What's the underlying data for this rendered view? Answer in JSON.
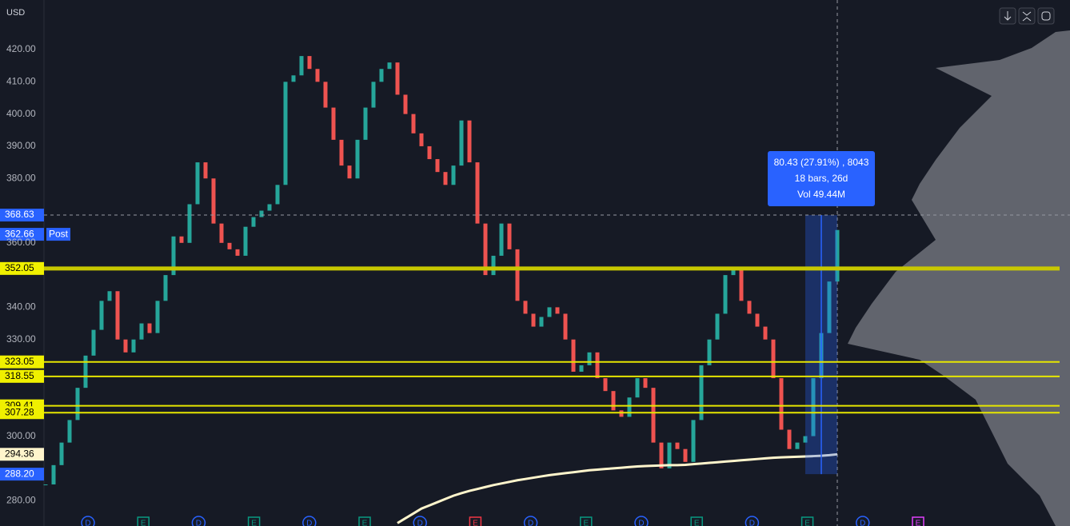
{
  "chart_data": {
    "type": "candlestick",
    "currency": "USD",
    "session_label": "Post",
    "ylim": [
      272.1,
      435.4
    ],
    "yticks": [
      {
        "value": 420,
        "label": "420.00"
      },
      {
        "value": 410,
        "label": "410.00"
      },
      {
        "value": 400,
        "label": "400.00"
      },
      {
        "value": 390,
        "label": "390.00"
      },
      {
        "value": 380,
        "label": "380.00"
      },
      {
        "value": 360,
        "label": "360.00"
      },
      {
        "value": 340,
        "label": "340.00"
      },
      {
        "value": 330,
        "label": "330.00"
      },
      {
        "value": 300,
        "label": "300.00"
      },
      {
        "value": 280,
        "label": "280.00"
      }
    ],
    "up_color": "#26a69a",
    "down_color": "#ef5350",
    "ma_color": "#fff5cc",
    "candles": {
      "close": [
        285,
        291,
        298,
        305,
        315,
        325,
        333,
        342,
        345,
        330,
        326,
        330,
        335,
        332,
        342,
        350,
        362,
        360,
        372,
        385,
        380,
        366,
        360,
        358,
        356,
        365,
        368,
        370,
        372,
        378,
        410,
        412,
        418,
        414,
        410,
        402,
        392,
        384,
        380,
        392,
        402,
        410,
        414,
        416,
        406,
        400,
        394,
        390,
        386,
        382,
        378,
        384,
        398,
        385,
        366,
        350,
        356,
        366,
        358,
        342,
        338,
        334,
        337,
        340,
        338,
        330,
        320,
        322,
        326,
        318,
        314,
        308,
        306,
        312,
        318,
        315,
        298,
        290,
        298,
        296,
        292,
        305,
        322,
        330,
        338,
        350,
        352,
        342,
        338,
        334,
        330,
        318,
        302,
        296,
        298,
        300,
        318,
        332,
        348,
        364
      ]
    },
    "ma": [
      null,
      null,
      null,
      null,
      null,
      null,
      null,
      null,
      null,
      null,
      null,
      null,
      null,
      null,
      null,
      null,
      null,
      null,
      null,
      null,
      null,
      null,
      null,
      null,
      null,
      null,
      null,
      null,
      null,
      null,
      null,
      null,
      null,
      null,
      null,
      null,
      null,
      null,
      null,
      null,
      null,
      null,
      null,
      null,
      273,
      274.5,
      276,
      277.5,
      278.5,
      279.5,
      280.5,
      281.5,
      282.3,
      283,
      283.6,
      284.2,
      284.8,
      285.3,
      285.8,
      286.3,
      286.7,
      287.1,
      287.5,
      287.9,
      288.2,
      288.5,
      288.8,
      289.1,
      289.4,
      289.6,
      289.8,
      290,
      290.2,
      290.4,
      290.6,
      290.7,
      290.8,
      290.9,
      291,
      291,
      291.1,
      291.3,
      291.5,
      291.7,
      291.9,
      292.1,
      292.3,
      292.5,
      292.7,
      292.9,
      293.1,
      293.3,
      293.4,
      293.5,
      293.6,
      293.7,
      293.8,
      293.9,
      294.1,
      294.36
    ],
    "price_labels": [
      {
        "value": 368.63,
        "color": "#2962ff",
        "text_color": "#ffffff",
        "line": "dashed"
      },
      {
        "value": 362.66,
        "color": "#2962ff",
        "text_color": "#ffffff"
      },
      {
        "value": 352.05,
        "color": "#f0f000",
        "text_color": "#000000",
        "line": "thick"
      },
      {
        "value": 323.05,
        "color": "#f0f000",
        "text_color": "#000000",
        "line": "thin"
      },
      {
        "value": 318.55,
        "color": "#f0f000",
        "text_color": "#000000",
        "line": "thin"
      },
      {
        "value": 309.41,
        "color": "#f0f000",
        "text_color": "#000000",
        "line": "thin"
      },
      {
        "value": 307.28,
        "color": "#f0f000",
        "text_color": "#000000",
        "line": "thin"
      },
      {
        "value": 294.36,
        "color": "#fff5cc",
        "text_color": "#000000"
      },
      {
        "value": 288.2,
        "label": "288.20",
        "color": "#2962ff",
        "text_color": "#ffffff"
      }
    ],
    "tooltip": [
      "80.43 (27.91%) , 8043",
      "18 bars, 26d",
      "Vol 49.44M"
    ],
    "events": [
      {
        "letter": "D",
        "color": "#2962ff"
      },
      {
        "letter": "E",
        "color": "#089981"
      },
      {
        "letter": "D",
        "color": "#2962ff"
      },
      {
        "letter": "E",
        "color": "#089981"
      },
      {
        "letter": "D",
        "color": "#2962ff"
      },
      {
        "letter": "E",
        "color": "#089981"
      },
      {
        "letter": "D",
        "color": "#2962ff"
      },
      {
        "letter": "E",
        "color": "#f23645"
      },
      {
        "letter": "D",
        "color": "#2962ff"
      },
      {
        "letter": "E",
        "color": "#089981"
      },
      {
        "letter": "D",
        "color": "#2962ff"
      },
      {
        "letter": "E",
        "color": "#089981"
      },
      {
        "letter": "D",
        "color": "#2962ff"
      },
      {
        "letter": "E",
        "color": "#089981"
      },
      {
        "letter": "D",
        "color": "#2962ff"
      },
      {
        "letter": "E",
        "color": "#e040fb"
      }
    ]
  }
}
